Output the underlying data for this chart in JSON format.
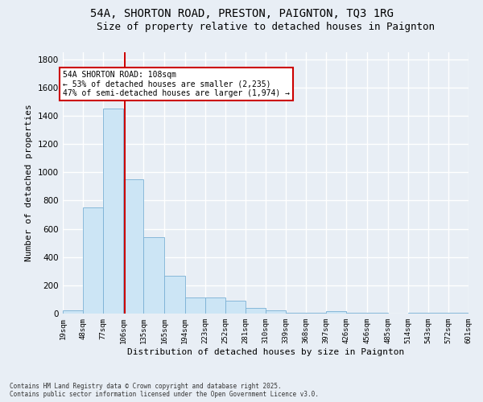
{
  "title1": "54A, SHORTON ROAD, PRESTON, PAIGNTON, TQ3 1RG",
  "title2": "Size of property relative to detached houses in Paignton",
  "xlabel": "Distribution of detached houses by size in Paignton",
  "ylabel": "Number of detached properties",
  "bin_edges": [
    19,
    48,
    77,
    106,
    135,
    165,
    194,
    223,
    252,
    281,
    310,
    339,
    368,
    397,
    426,
    456,
    485,
    514,
    543,
    572,
    601
  ],
  "bar_heights": [
    20,
    750,
    1450,
    950,
    540,
    270,
    115,
    115,
    90,
    40,
    22,
    8,
    5,
    15,
    8,
    5,
    0,
    5,
    5,
    5
  ],
  "bar_color": "#cce5f5",
  "bar_edge_color": "#7ab0d4",
  "red_line_x": 108,
  "ylim": [
    0,
    1850
  ],
  "yticks": [
    0,
    200,
    400,
    600,
    800,
    1000,
    1200,
    1400,
    1600,
    1800
  ],
  "annotation_line1": "54A SHORTON ROAD: 108sqm",
  "annotation_line2": "← 53% of detached houses are smaller (2,235)",
  "annotation_line3": "47% of semi-detached houses are larger (1,974) →",
  "annotation_box_color": "#ffffff",
  "annotation_border_color": "#cc0000",
  "footer1": "Contains HM Land Registry data © Crown copyright and database right 2025.",
  "footer2": "Contains public sector information licensed under the Open Government Licence v3.0.",
  "bg_color": "#e8eef5",
  "grid_color": "#ffffff",
  "title_fontsize": 10,
  "subtitle_fontsize": 9,
  "tick_fontsize": 6.5,
  "ylabel_fontsize": 8,
  "xlabel_fontsize": 8
}
